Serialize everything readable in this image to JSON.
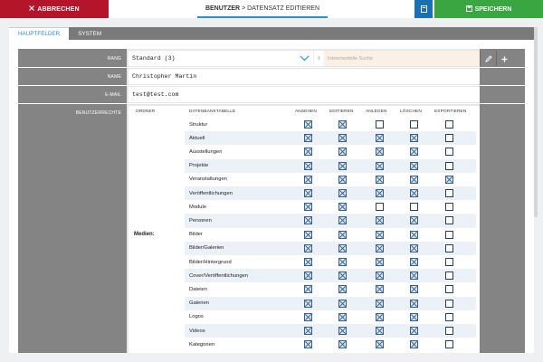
{
  "toolbar": {
    "cancel_label": "ABBRECHEN",
    "cancel_icon": "close-icon",
    "title_main": "BENUTZER",
    "title_sep": ">",
    "title_sub": "DATENSATZ EDITIEREN",
    "doc_icon": "document-icon",
    "save_label": "SPEICHERN",
    "save_icon": "save-icon",
    "colors": {
      "cancel": "#b5152a",
      "save": "#3aa641",
      "doc": "#1c6fb1",
      "accent": "#2a8fd6"
    }
  },
  "tabs": [
    {
      "label": "HAUPTFELDER",
      "active": true
    },
    {
      "label": "SYSTEM",
      "active": false
    }
  ],
  "form": {
    "rank_label": "RANG",
    "rank_value": "Standard (3)",
    "rank_step": "⇕",
    "search_placeholder": "Inkrementelle Suche",
    "name_label": "NAME",
    "name_value": "Christopher Martin",
    "email_label": "E-MAIL",
    "email_value": "test@test.com",
    "rights_label": "BENUTZERRECHTE"
  },
  "permissions": {
    "headers": {
      "folder": "ORDNER",
      "table": "DATENBANKTABELLE",
      "view": "ANSEHEN",
      "edit": "EDITIEREN",
      "create": "ANLEGEN",
      "delete": "LÖSCHEN",
      "export": "EXPORTIEREN"
    },
    "rows": [
      {
        "folder": "",
        "table": "Struktur",
        "flags": [
          true,
          true,
          false,
          false,
          false
        ]
      },
      {
        "folder": "",
        "table": "Aktuell",
        "flags": [
          true,
          true,
          true,
          true,
          false
        ]
      },
      {
        "folder": "",
        "table": "Ausstellungen",
        "flags": [
          true,
          true,
          true,
          true,
          false
        ]
      },
      {
        "folder": "",
        "table": "Projekte",
        "flags": [
          true,
          true,
          true,
          true,
          false
        ]
      },
      {
        "folder": "",
        "table": "Veranstaltungen",
        "flags": [
          true,
          true,
          true,
          true,
          true
        ]
      },
      {
        "folder": "",
        "table": "Veröffentlichungen",
        "flags": [
          true,
          true,
          true,
          true,
          false
        ]
      },
      {
        "folder": "",
        "table": "Module",
        "flags": [
          true,
          true,
          false,
          false,
          false
        ]
      },
      {
        "folder": "",
        "table": "Personen",
        "flags": [
          true,
          true,
          true,
          true,
          false
        ]
      },
      {
        "folder": "Medien:",
        "table": "Bilder",
        "flags": [
          true,
          true,
          true,
          true,
          false
        ]
      },
      {
        "folder": "",
        "table": "Bilder/Galerien",
        "flags": [
          true,
          true,
          true,
          true,
          false
        ]
      },
      {
        "folder": "",
        "table": "Bilder/Hintergrund",
        "flags": [
          true,
          true,
          true,
          true,
          false
        ]
      },
      {
        "folder": "",
        "table": "Cover/Veröffentlichungen",
        "flags": [
          true,
          true,
          true,
          true,
          false
        ]
      },
      {
        "folder": "",
        "table": "Dateien",
        "flags": [
          true,
          true,
          true,
          true,
          false
        ]
      },
      {
        "folder": "",
        "table": "Galerien",
        "flags": [
          true,
          true,
          true,
          true,
          false
        ]
      },
      {
        "folder": "",
        "table": "Logos",
        "flags": [
          true,
          true,
          true,
          true,
          false
        ]
      },
      {
        "folder": "",
        "table": "Videos",
        "flags": [
          true,
          true,
          true,
          true,
          false
        ]
      },
      {
        "folder": "",
        "table": "Kategorien",
        "flags": [
          true,
          true,
          true,
          true,
          false
        ]
      }
    ]
  }
}
